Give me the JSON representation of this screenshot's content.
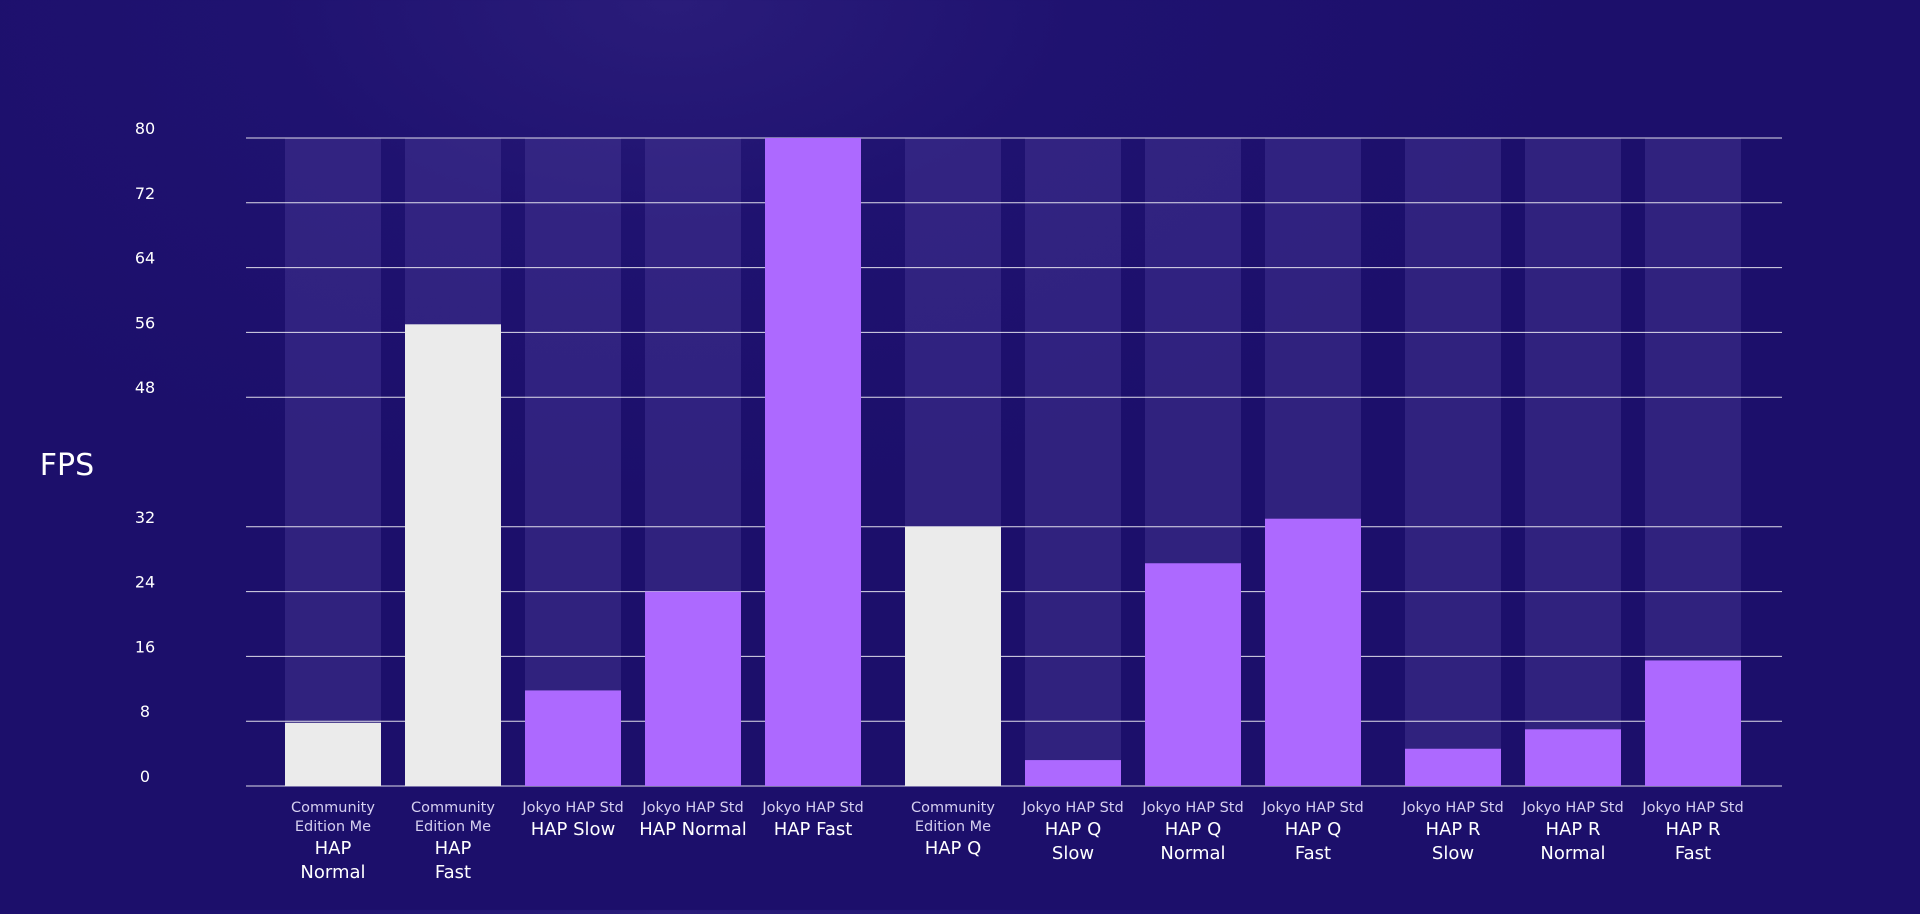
{
  "chart_data": {
    "type": "bar",
    "ylabel": "FPS",
    "ylim": [
      0,
      80
    ],
    "yticks": [
      0,
      8,
      16,
      24,
      32,
      48,
      56,
      64,
      72,
      80
    ],
    "grid": true,
    "colors": {
      "background": "#1c0f6b",
      "track": "#4a3a96",
      "baseline_bar": "#ebebeb",
      "jokyo_bar": "#ad69ff",
      "gridline": "#ffffff",
      "text": "#ffffff",
      "subtext": "#d6d0f0"
    },
    "categories": [
      {
        "group": "HAP",
        "sub": [
          "Community",
          "Edition Me"
        ],
        "label": [
          "HAP",
          "Normal"
        ],
        "value": 7.8,
        "series": "baseline"
      },
      {
        "group": "HAP",
        "sub": [
          "Community",
          "Edition Me"
        ],
        "label": [
          "HAP",
          "Fast"
        ],
        "value": 57.0,
        "series": "baseline"
      },
      {
        "group": "HAP",
        "sub": [
          "Jokyo HAP Std"
        ],
        "label": [
          "HAP Slow"
        ],
        "value": 11.8,
        "series": "jokyo"
      },
      {
        "group": "HAP",
        "sub": [
          "Jokyo HAP Std"
        ],
        "label": [
          "HAP Normal"
        ],
        "value": 24.0,
        "series": "jokyo"
      },
      {
        "group": "HAP",
        "sub": [
          "Jokyo HAP Std"
        ],
        "label": [
          "HAP Fast"
        ],
        "value": 80.0,
        "series": "jokyo"
      },
      {
        "group": "HAP Q",
        "sub": [
          "Community",
          "Edition Me"
        ],
        "label": [
          "HAP Q"
        ],
        "value": 32.0,
        "series": "baseline"
      },
      {
        "group": "HAP Q",
        "sub": [
          "Jokyo HAP Std"
        ],
        "label": [
          "HAP Q",
          "Slow"
        ],
        "value": 3.2,
        "series": "jokyo"
      },
      {
        "group": "HAP Q",
        "sub": [
          "Jokyo HAP Std"
        ],
        "label": [
          "HAP Q",
          "Normal"
        ],
        "value": 27.5,
        "series": "jokyo"
      },
      {
        "group": "HAP Q",
        "sub": [
          "Jokyo HAP Std"
        ],
        "label": [
          "HAP Q",
          "Fast"
        ],
        "value": 33.0,
        "series": "jokyo"
      },
      {
        "group": "HAP R",
        "sub": [
          "Jokyo HAP Std"
        ],
        "label": [
          "HAP R",
          "Slow"
        ],
        "value": 4.6,
        "series": "jokyo"
      },
      {
        "group": "HAP R",
        "sub": [
          "Jokyo HAP Std"
        ],
        "label": [
          "HAP R",
          "Normal"
        ],
        "value": 7.0,
        "series": "jokyo"
      },
      {
        "group": "HAP R",
        "sub": [
          "Jokyo HAP Std"
        ],
        "label": [
          "HAP R",
          "Fast"
        ],
        "value": 15.5,
        "series": "jokyo"
      }
    ]
  }
}
